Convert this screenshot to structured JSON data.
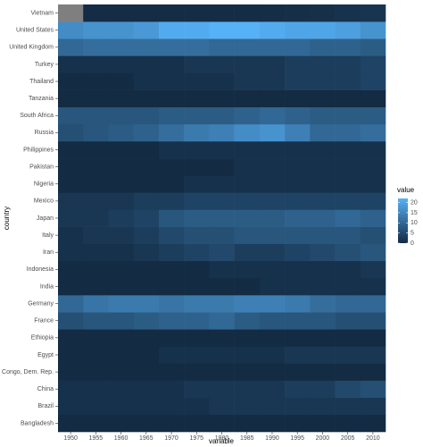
{
  "chart_data": {
    "type": "heatmap",
    "x_label": "variable",
    "y_label": "country",
    "legend_title": "value",
    "x": [
      1950,
      1955,
      1960,
      1965,
      1970,
      1975,
      1980,
      1985,
      1990,
      1995,
      2000,
      2005,
      2010
    ],
    "y": [
      "Bangladesh",
      "Brazil",
      "China",
      "Congo, Dem. Rep.",
      "Egypt",
      "Ethiopia",
      "France",
      "Germany",
      "India",
      "Indonesia",
      "Iran",
      "Italy",
      "Japan",
      "Mexico",
      "Nigeria",
      "Pakistan",
      "Philippines",
      "Russia",
      "South Africa",
      "Tanzania",
      "Thailand",
      "Turkey",
      "United Kingdom",
      "United States",
      "Vietnam"
    ],
    "values": [
      [
        0,
        0,
        0,
        0,
        0,
        0,
        0,
        0,
        0,
        0,
        0,
        0,
        0
      ],
      [
        1,
        1,
        1,
        1,
        1,
        1,
        2,
        2,
        2,
        2,
        2,
        2,
        2
      ],
      [
        1,
        1,
        1,
        1,
        1,
        2,
        2,
        2,
        2,
        3,
        3,
        5,
        6
      ],
      [
        0,
        0,
        0,
        0,
        0,
        0,
        0,
        0,
        0,
        0,
        0,
        0,
        0
      ],
      [
        0,
        0,
        0,
        0,
        1,
        1,
        1,
        1,
        1,
        2,
        2,
        2,
        2
      ],
      [
        0,
        0,
        0,
        0,
        0,
        0,
        0,
        0,
        0,
        0,
        0,
        0,
        0
      ],
      [
        6,
        7,
        7,
        8,
        9,
        9,
        10,
        8,
        7,
        7,
        7,
        6,
        6
      ],
      [
        10,
        12,
        13,
        13,
        12,
        13,
        13,
        14,
        14,
        13,
        11,
        10,
        10
      ],
      [
        0,
        0,
        0,
        0,
        0,
        0,
        0,
        0,
        1,
        1,
        1,
        1,
        1
      ],
      [
        0,
        0,
        0,
        0,
        0,
        0,
        1,
        1,
        1,
        1,
        1,
        1,
        2
      ],
      [
        1,
        1,
        1,
        2,
        3,
        4,
        5,
        3,
        3,
        4,
        5,
        6,
        7
      ],
      [
        1,
        2,
        2,
        3,
        5,
        6,
        6,
        7,
        7,
        7,
        7,
        7,
        6
      ],
      [
        2,
        2,
        3,
        4,
        7,
        8,
        8,
        8,
        8,
        9,
        9,
        10,
        9
      ],
      [
        2,
        2,
        2,
        3,
        3,
        4,
        4,
        4,
        4,
        4,
        4,
        4,
        4
      ],
      [
        0,
        0,
        0,
        0,
        0,
        1,
        1,
        1,
        1,
        1,
        1,
        1,
        1
      ],
      [
        0,
        0,
        0,
        0,
        0,
        0,
        0,
        1,
        1,
        1,
        1,
        1,
        1
      ],
      [
        0,
        0,
        0,
        0,
        1,
        1,
        1,
        1,
        1,
        1,
        1,
        1,
        1
      ],
      [
        6,
        7,
        8,
        9,
        11,
        13,
        14,
        16,
        17,
        14,
        10,
        10,
        11
      ],
      [
        7,
        7,
        7,
        7,
        8,
        8,
        8,
        9,
        10,
        9,
        8,
        8,
        8
      ],
      [
        0,
        0,
        0,
        0,
        0,
        0,
        0,
        0,
        0,
        0,
        0,
        0,
        0
      ],
      [
        0,
        0,
        0,
        1,
        1,
        1,
        1,
        2,
        2,
        3,
        3,
        3,
        4
      ],
      [
        1,
        1,
        1,
        1,
        1,
        2,
        2,
        2,
        2,
        3,
        3,
        3,
        4
      ],
      [
        10,
        11,
        11,
        11,
        11,
        11,
        10,
        10,
        10,
        10,
        9,
        9,
        8
      ],
      [
        16,
        17,
        17,
        18,
        21,
        21,
        22,
        22,
        21,
        20,
        20,
        19,
        17
      ],
      [
        null,
        0.2,
        0.2,
        0.3,
        0.3,
        0.3,
        0.3,
        0.4,
        0.5,
        0.7,
        0.9,
        1.2,
        1.6
      ]
    ],
    "color_range": [
      0,
      22
    ],
    "colors": [
      "#132B43",
      "#56B1F7"
    ],
    "na_color": "#7F7F7F",
    "legend_ticks": [
      0,
      5,
      10,
      15,
      20
    ]
  }
}
